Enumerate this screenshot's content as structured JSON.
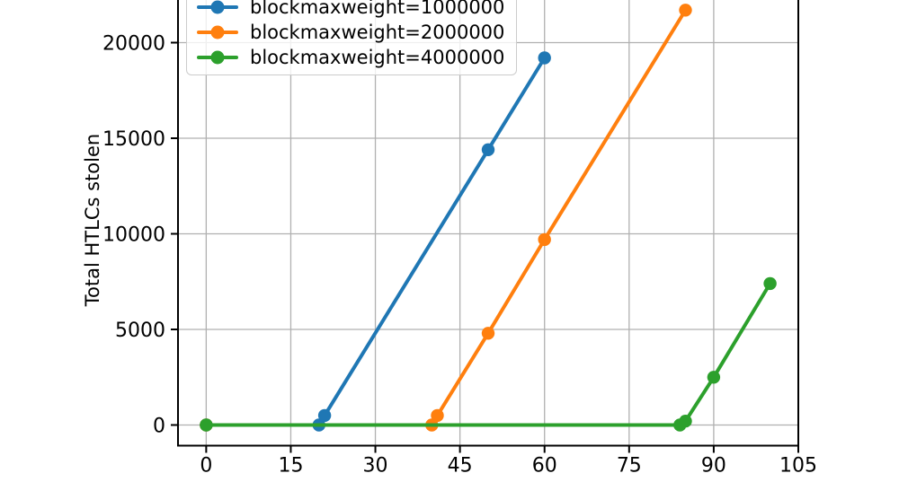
{
  "figure": {
    "background": "#ffffff",
    "text_color": "#000000",
    "grid_color": "#b0b0b0",
    "spine_color": "#000000"
  },
  "chart_data": {
    "type": "line",
    "title": "",
    "xlabel": "",
    "ylabel": "Total HTLCs stolen",
    "x_ticks": [
      0,
      15,
      30,
      45,
      60,
      75,
      90,
      105
    ],
    "y_ticks": [
      0,
      5000,
      10000,
      15000,
      20000
    ],
    "xlim": [
      -5,
      105
    ],
    "ylim_visible": [
      -1080,
      22300
    ],
    "grid": true,
    "legend_position": "upper-left",
    "series": [
      {
        "name": "blockmaxweight=1000000",
        "color": "#1f77b4",
        "points": [
          [
            0,
            0
          ],
          [
            20,
            0
          ],
          [
            21,
            500
          ],
          [
            50,
            14400
          ],
          [
            60,
            19200
          ]
        ]
      },
      {
        "name": "blockmaxweight=2000000",
        "color": "#ff7f0e",
        "points": [
          [
            0,
            0
          ],
          [
            40,
            0
          ],
          [
            41,
            500
          ],
          [
            50,
            4800
          ],
          [
            60,
            9700
          ],
          [
            85,
            21700
          ]
        ]
      },
      {
        "name": "blockmaxweight=4000000",
        "color": "#2ca02c",
        "points": [
          [
            0,
            0
          ],
          [
            84,
            0
          ],
          [
            85,
            200
          ],
          [
            90,
            2500
          ],
          [
            100,
            7400
          ]
        ]
      }
    ]
  }
}
